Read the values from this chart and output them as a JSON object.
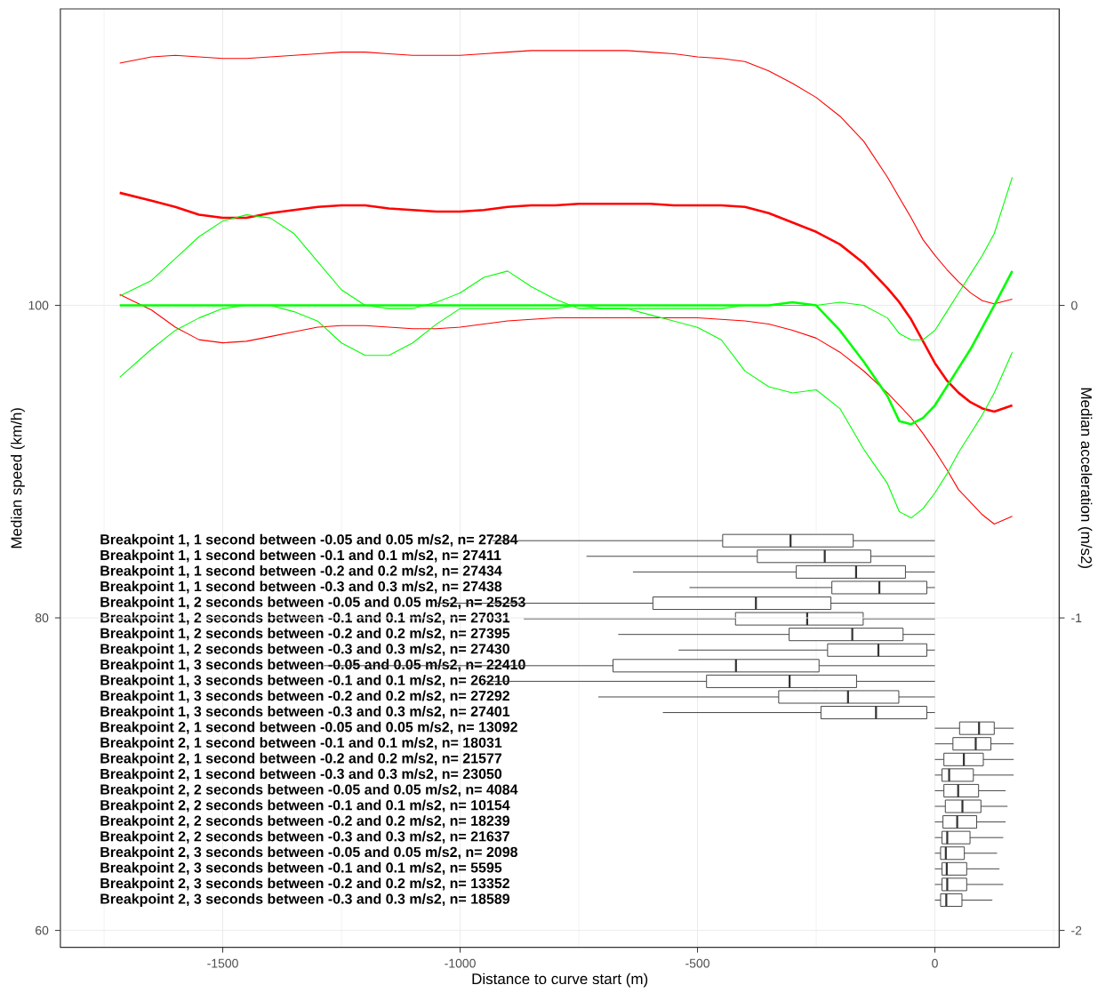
{
  "chart_data": [
    {
      "type": "line",
      "xlabel": "Distance to curve start (m)",
      "ylabel": "Median speed (km/h)",
      "y2label": "Median acceleration (m/s2)",
      "xlim": [
        -1842,
        262
      ],
      "ylim": [
        58.92,
        118.97
      ],
      "y2lim": [
        -2.054,
        0.949
      ],
      "yticks": [
        60,
        80,
        100
      ],
      "y2ticks": [
        -2,
        -1,
        0
      ],
      "grid": "y",
      "series": [
        {
          "color": "#ff0000",
          "x": [
            -1717,
            -1650,
            -1600,
            -1550,
            -1500,
            -1450,
            -1400,
            -1350,
            -1300,
            -1250,
            -1200,
            -1150,
            -1100,
            -1050,
            -1000,
            -950,
            -900,
            -850,
            -800,
            -750,
            -700,
            -650,
            -600,
            -550,
            -500,
            -450,
            -400,
            -350,
            -300,
            -250,
            -200,
            -150,
            -100,
            -75,
            -50,
            -25,
            0,
            25,
            50,
            75,
            100,
            125,
            163
          ],
          "values": [
            107.2,
            106.7,
            106.3,
            105.8,
            105.6,
            105.6,
            105.9,
            106.1,
            106.3,
            106.4,
            106.4,
            106.2,
            106.1,
            106.0,
            106.0,
            106.1,
            106.3,
            106.4,
            106.4,
            106.5,
            106.5,
            106.5,
            106.5,
            106.4,
            106.4,
            106.4,
            106.3,
            105.9,
            105.3,
            104.7,
            103.9,
            102.7,
            101.1,
            100.2,
            99.1,
            97.7,
            96.3,
            95.2,
            94.4,
            93.8,
            93.4,
            93.2,
            93.6
          ]
        },
        {
          "color": "#ff0000",
          "x": [
            -1717,
            -1650,
            -1600,
            -1550,
            -1500,
            -1450,
            -1400,
            -1350,
            -1300,
            -1250,
            -1200,
            -1150,
            -1100,
            -1050,
            -1000,
            -950,
            -900,
            -850,
            -800,
            -750,
            -700,
            -650,
            -600,
            -550,
            -500,
            -450,
            -400,
            -350,
            -300,
            -250,
            -200,
            -150,
            -100,
            -75,
            -50,
            -25,
            0,
            25,
            50,
            75,
            100,
            125,
            163
          ],
          "values": [
            115.5,
            115.9,
            116.0,
            115.9,
            115.8,
            115.8,
            115.9,
            116.0,
            116.1,
            116.2,
            116.2,
            116.1,
            116.0,
            116.0,
            116.0,
            116.1,
            116.2,
            116.3,
            116.3,
            116.3,
            116.3,
            116.3,
            116.2,
            116.1,
            115.9,
            115.8,
            115.6,
            115.0,
            114.2,
            113.3,
            112.1,
            110.5,
            108.2,
            106.9,
            105.6,
            104.2,
            103.2,
            102.3,
            101.5,
            100.8,
            100.3,
            100.1,
            100.4
          ]
        },
        {
          "color": "#ff0000",
          "x": [
            -1717,
            -1650,
            -1600,
            -1550,
            -1500,
            -1450,
            -1400,
            -1350,
            -1300,
            -1250,
            -1200,
            -1150,
            -1100,
            -1050,
            -1000,
            -950,
            -900,
            -850,
            -800,
            -750,
            -700,
            -650,
            -600,
            -550,
            -500,
            -450,
            -400,
            -350,
            -300,
            -250,
            -200,
            -150,
            -100,
            -75,
            -50,
            -25,
            0,
            25,
            50,
            75,
            100,
            125,
            163
          ],
          "values": [
            100.7,
            99.7,
            98.6,
            97.8,
            97.6,
            97.7,
            98.0,
            98.3,
            98.6,
            98.7,
            98.7,
            98.6,
            98.5,
            98.5,
            98.6,
            98.8,
            99.0,
            99.1,
            99.2,
            99.2,
            99.2,
            99.2,
            99.2,
            99.2,
            99.2,
            99.1,
            99.0,
            98.8,
            98.4,
            97.9,
            97.0,
            95.8,
            94.4,
            93.6,
            92.8,
            91.8,
            90.7,
            89.5,
            88.2,
            87.4,
            86.6,
            86.0,
            86.5
          ]
        },
        {
          "color": "#00ff00",
          "axis": "y2",
          "x": [
            -1717,
            -1650,
            -1600,
            -1550,
            -1500,
            -1450,
            -1400,
            -1350,
            -1300,
            -1250,
            -1200,
            -1150,
            -1100,
            -1050,
            -1000,
            -950,
            -900,
            -850,
            -800,
            -750,
            -700,
            -650,
            -600,
            -550,
            -500,
            -450,
            -400,
            -350,
            -300,
            -250,
            -200,
            -150,
            -100,
            -75,
            -50,
            -25,
            0,
            25,
            50,
            75,
            100,
            125,
            163
          ],
          "values": [
            0,
            0,
            0,
            0,
            0,
            0,
            0,
            0,
            0,
            0,
            0,
            0,
            0,
            0,
            0,
            0,
            0,
            0,
            0,
            0,
            0,
            0,
            0,
            0,
            0,
            0,
            0,
            0,
            0.01,
            0,
            -0.08,
            -0.18,
            -0.29,
            -0.37,
            -0.38,
            -0.36,
            -0.32,
            -0.26,
            -0.2,
            -0.14,
            -0.07,
            0.0,
            0.11
          ]
        },
        {
          "color": "#00ff00",
          "axis": "y2",
          "x": [
            -1717,
            -1650,
            -1600,
            -1550,
            -1500,
            -1450,
            -1400,
            -1350,
            -1300,
            -1250,
            -1200,
            -1150,
            -1100,
            -1050,
            -1000,
            -950,
            -900,
            -850,
            -800,
            -750,
            -700,
            -650,
            -600,
            -550,
            -500,
            -450,
            -400,
            -350,
            -300,
            -250,
            -200,
            -150,
            -100,
            -75,
            -50,
            -25,
            0,
            25,
            50,
            75,
            100,
            125,
            163
          ],
          "values": [
            0.03,
            0.08,
            0.15,
            0.22,
            0.27,
            0.29,
            0.28,
            0.23,
            0.14,
            0.05,
            0.0,
            -0.01,
            -0.01,
            0.01,
            0.04,
            0.09,
            0.11,
            0.06,
            0.02,
            -0.01,
            -0.01,
            -0.01,
            -0.01,
            -0.01,
            -0.01,
            -0.01,
            0.0,
            0.0,
            0.0,
            0.0,
            0.01,
            0.0,
            -0.04,
            -0.09,
            -0.11,
            -0.11,
            -0.08,
            -0.02,
            0.04,
            0.1,
            0.16,
            0.23,
            0.41
          ]
        },
        {
          "color": "#00ff00",
          "axis": "y2",
          "x": [
            -1717,
            -1650,
            -1600,
            -1550,
            -1500,
            -1450,
            -1400,
            -1350,
            -1300,
            -1250,
            -1200,
            -1150,
            -1100,
            -1050,
            -1000,
            -950,
            -900,
            -850,
            -800,
            -750,
            -700,
            -650,
            -600,
            -550,
            -500,
            -450,
            -400,
            -350,
            -300,
            -250,
            -200,
            -150,
            -100,
            -75,
            -50,
            -25,
            0,
            25,
            50,
            75,
            100,
            125,
            163
          ],
          "values": [
            -0.23,
            -0.14,
            -0.08,
            -0.04,
            -0.01,
            0,
            0,
            -0.02,
            -0.05,
            -0.12,
            -0.16,
            -0.16,
            -0.12,
            -0.06,
            -0.01,
            -0.01,
            -0.01,
            -0.01,
            -0.01,
            0.0,
            -0.01,
            -0.01,
            -0.03,
            -0.05,
            -0.07,
            -0.11,
            -0.21,
            -0.26,
            -0.28,
            -0.27,
            -0.33,
            -0.46,
            -0.57,
            -0.66,
            -0.68,
            -0.65,
            -0.6,
            -0.54,
            -0.47,
            -0.41,
            -0.35,
            -0.28,
            -0.15
          ]
        }
      ]
    },
    {
      "type": "box",
      "orientation": "horizontal",
      "xlim": [
        -1842,
        262
      ],
      "xticks": [
        -1500,
        -1000,
        -500,
        0
      ],
      "grid": "x",
      "categories": [
        "Breakpoint 1, 1 second between -0.05 and 0.05 m/s2, n= 27284",
        "Breakpoint 1, 1 second between -0.1 and 0.1 m/s2, n= 27411",
        "Breakpoint 1, 1 second between -0.2 and 0.2 m/s2, n= 27434",
        "Breakpoint 1, 1 second between -0.3 and 0.3 m/s2, n= 27438",
        "Breakpoint 1, 2 seconds between -0.05 and 0.05 m/s2, n= 25253",
        "Breakpoint 1, 2 seconds between -0.1 and 0.1 m/s2, n= 27031",
        "Breakpoint 1, 2 seconds between -0.2 and 0.2 m/s2, n= 27395",
        "Breakpoint 1, 2 seconds between -0.3 and 0.3 m/s2, n= 27430",
        "Breakpoint 1, 3 seconds between -0.05 and 0.05 m/s2, n= 22410",
        "Breakpoint 1, 3 seconds between -0.1 and 0.1 m/s2, n= 26210",
        "Breakpoint 1, 3 seconds between -0.2 and 0.2 m/s2, n= 27292",
        "Breakpoint 1, 3 seconds between -0.3 and 0.3 m/s2, n= 27401",
        "Breakpoint 2, 1 second between -0.05 and 0.05 m/s2, n= 13092",
        "Breakpoint 2, 1 second between -0.1 and 0.1 m/s2, n= 18031",
        "Breakpoint 2, 1 second between -0.2 and 0.2 m/s2, n= 21577",
        "Breakpoint 2, 1 second between -0.3 and 0.3 m/s2, n= 23050",
        "Breakpoint 2, 2 seconds between -0.05 and 0.05 m/s2, n= 4084",
        "Breakpoint 2, 2 seconds between -0.1 and 0.1 m/s2, n= 10154",
        "Breakpoint 2, 2 seconds between -0.2 and 0.2 m/s2, n= 18239",
        "Breakpoint 2, 2 seconds between -0.3 and 0.3 m/s2, n= 21637",
        "Breakpoint 2, 3 seconds between -0.05 and 0.05 m/s2, n= 2098",
        "Breakpoint 2, 3 seconds between -0.1 and 0.1 m/s2, n= 5595",
        "Breakpoint 2, 3 seconds between -0.2 and 0.2 m/s2, n= 13352",
        "Breakpoint 2, 3 seconds between -0.3 and 0.3 m/s2, n= 18589"
      ],
      "boxes": [
        {
          "low": -932,
          "q1": -447,
          "median": -304,
          "q3": -172,
          "high": 0
        },
        {
          "low": -734,
          "q1": -374,
          "median": -232,
          "q3": -135,
          "high": 0
        },
        {
          "low": -636,
          "q1": -292,
          "median": -166,
          "q3": -62,
          "high": 0
        },
        {
          "low": -517,
          "q1": -217,
          "median": -117,
          "q3": -17,
          "high": 0
        },
        {
          "low": -1053,
          "q1": -594,
          "median": -377,
          "q3": -219,
          "high": 0
        },
        {
          "low": -866,
          "q1": -420,
          "median": -269,
          "q3": -151,
          "high": 0
        },
        {
          "low": -667,
          "q1": -307,
          "median": -174,
          "q3": -67,
          "high": 0
        },
        {
          "low": -540,
          "q1": -226,
          "median": -119,
          "q3": -17,
          "high": 0
        },
        {
          "low": -1287,
          "q1": -678,
          "median": -419,
          "q3": -244,
          "high": 0
        },
        {
          "low": -950,
          "q1": -481,
          "median": -306,
          "q3": -165,
          "high": 0
        },
        {
          "low": -709,
          "q1": -329,
          "median": -183,
          "q3": -76,
          "high": 0
        },
        {
          "low": -573,
          "q1": -240,
          "median": -124,
          "q3": -17,
          "high": 0
        },
        {
          "low": 0,
          "q1": 52,
          "median": 93,
          "q3": 125,
          "high": 166
        },
        {
          "low": 0,
          "q1": 38,
          "median": 86,
          "q3": 118,
          "high": 166
        },
        {
          "low": 0,
          "q1": 19,
          "median": 61,
          "q3": 102,
          "high": 166
        },
        {
          "low": 0,
          "q1": 15,
          "median": 30,
          "q3": 81,
          "high": 166
        },
        {
          "low": 0,
          "q1": 19,
          "median": 49,
          "q3": 92,
          "high": 149
        },
        {
          "low": 0,
          "q1": 22,
          "median": 58,
          "q3": 97,
          "high": 153
        },
        {
          "low": 0,
          "q1": 17,
          "median": 47,
          "q3": 88,
          "high": 149
        },
        {
          "low": 0,
          "q1": 15,
          "median": 26,
          "q3": 74,
          "high": 144
        },
        {
          "low": 0,
          "q1": 12,
          "median": 23,
          "q3": 62,
          "high": 131
        },
        {
          "low": 0,
          "q1": 15,
          "median": 25,
          "q3": 67,
          "high": 136
        },
        {
          "low": 0,
          "q1": 15,
          "median": 26,
          "q3": 67,
          "high": 144
        },
        {
          "low": 0,
          "q1": 12,
          "median": 24,
          "q3": 57,
          "high": 121
        }
      ]
    }
  ]
}
